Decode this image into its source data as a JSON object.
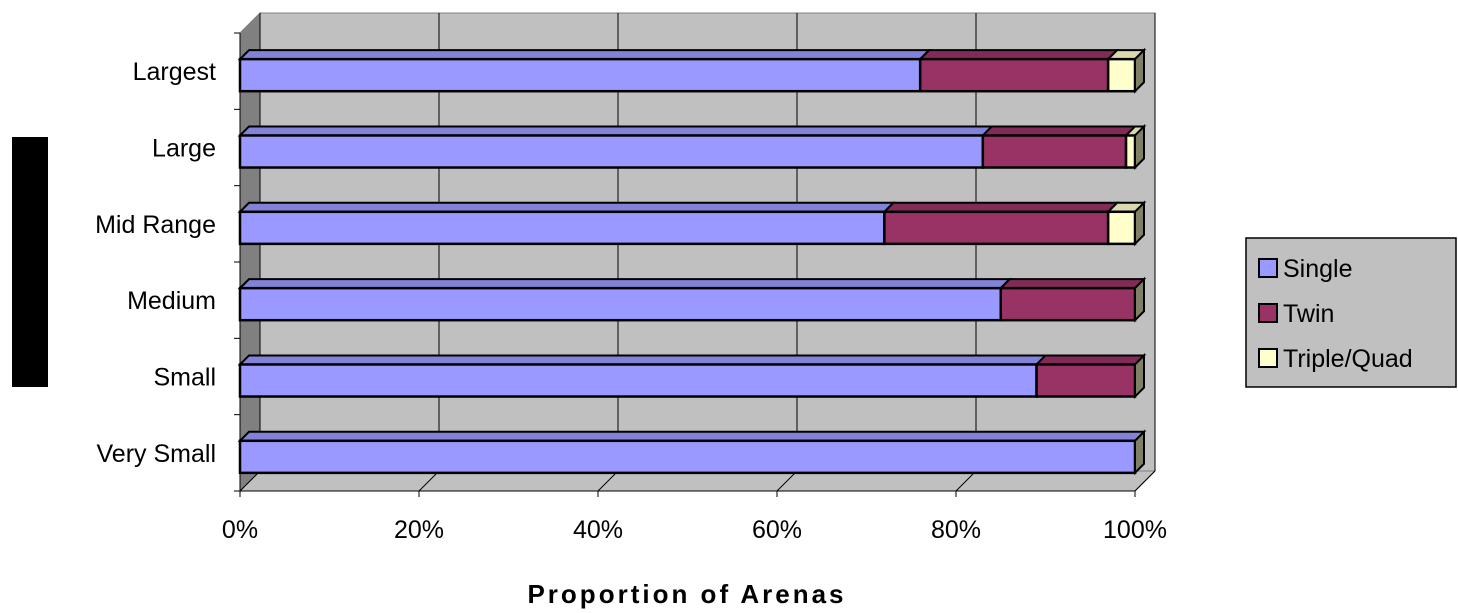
{
  "chart_data": {
    "type": "bar",
    "orientation": "horizontal",
    "stacked": "percent",
    "three_d": true,
    "categories": [
      "Very Small",
      "Small",
      "Medium",
      "Mid Range",
      "Large",
      "Largest"
    ],
    "series": [
      {
        "name": "Single",
        "color": "#9999ff",
        "values": [
          100,
          89,
          85,
          72,
          83,
          76
        ]
      },
      {
        "name": "Twin",
        "color": "#993366",
        "values": [
          0,
          11,
          15,
          25,
          16,
          21
        ]
      },
      {
        "name": "Triple/Quad",
        "color": "#ffffcc",
        "values": [
          0,
          0,
          0,
          3,
          1,
          3
        ]
      }
    ],
    "xticks": [
      "0%",
      "20%",
      "40%",
      "60%",
      "80%",
      "100%"
    ],
    "xlim": [
      0,
      100
    ],
    "xlabel": "Proportion of Arenas",
    "ylabel": "",
    "grid": true,
    "legend_position": "right",
    "plot_wall_color": "#c0c0c0",
    "plot_floor_color": "#808080"
  }
}
